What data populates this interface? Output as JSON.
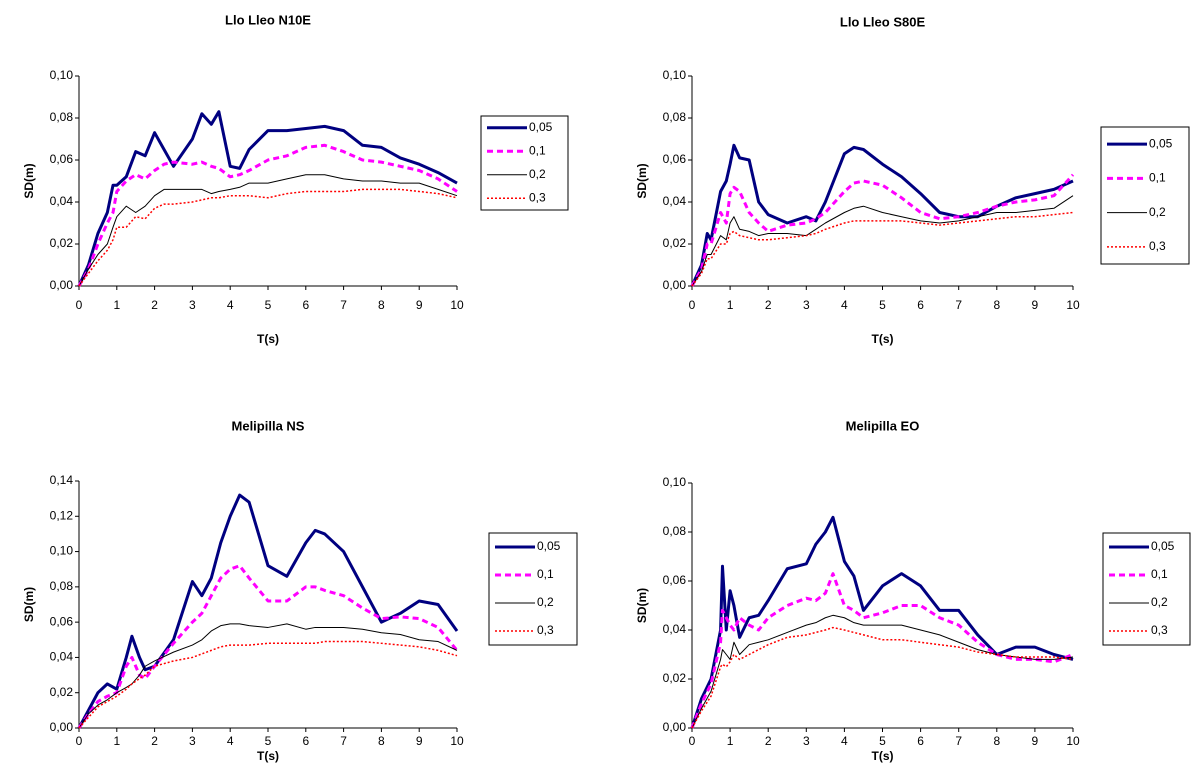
{
  "chart_data": [
    {
      "type": "line",
      "title": "Llo Lleo N10E",
      "x_label": "T(s)",
      "y_label": "SD(m)",
      "legend": "right",
      "grid": false,
      "xlim": [
        0,
        10
      ],
      "xticks": [
        0,
        1,
        2,
        3,
        4,
        5,
        6,
        7,
        8,
        9,
        10
      ],
      "ylim": [
        0,
        0.1
      ],
      "yticks": [
        {
          "value": 0,
          "label": "0,00"
        },
        {
          "value": 0.02,
          "label": "0,02"
        },
        {
          "value": 0.04,
          "label": "0,04"
        },
        {
          "value": 0.06,
          "label": "0,06"
        },
        {
          "value": 0.08,
          "label": "0,08"
        },
        {
          "value": 0.1,
          "label": "0,10"
        }
      ],
      "x": [
        0,
        0.25,
        0.5,
        0.75,
        0.9,
        1,
        1.25,
        1.5,
        1.75,
        2,
        2.25,
        2.5,
        3,
        3.25,
        3.5,
        3.7,
        4,
        4.25,
        4.5,
        5,
        5.5,
        6,
        6.5,
        7,
        7.5,
        8,
        8.5,
        9,
        9.5,
        10
      ],
      "series": [
        {
          "name": "0,05",
          "color": "#000080",
          "line_style": "solid-thick",
          "values": [
            0,
            0.01,
            0.025,
            0.035,
            0.048,
            0.048,
            0.052,
            0.064,
            0.062,
            0.073,
            0.065,
            0.057,
            0.07,
            0.082,
            0.077,
            0.083,
            0.057,
            0.056,
            0.065,
            0.074,
            0.074,
            0.075,
            0.076,
            0.074,
            0.067,
            0.066,
            0.061,
            0.058,
            0.054,
            0.049
          ]
        },
        {
          "name": "0,1",
          "color": "#ff00ff",
          "line_style": "dashed-thick",
          "values": [
            0,
            0.008,
            0.02,
            0.03,
            0.035,
            0.045,
            0.05,
            0.053,
            0.051,
            0.055,
            0.058,
            0.059,
            0.058,
            0.059,
            0.057,
            0.056,
            0.052,
            0.053,
            0.055,
            0.06,
            0.062,
            0.066,
            0.067,
            0.064,
            0.06,
            0.059,
            0.057,
            0.055,
            0.051,
            0.045
          ]
        },
        {
          "name": "0,2",
          "color": "#000000",
          "line_style": "solid-thin",
          "values": [
            0,
            0.008,
            0.015,
            0.02,
            0.028,
            0.033,
            0.038,
            0.035,
            0.038,
            0.043,
            0.046,
            0.046,
            0.046,
            0.046,
            0.044,
            0.045,
            0.046,
            0.047,
            0.049,
            0.049,
            0.051,
            0.053,
            0.053,
            0.051,
            0.05,
            0.05,
            0.049,
            0.049,
            0.046,
            0.043
          ]
        },
        {
          "name": "0,3",
          "color": "#ff0000",
          "line_style": "dotted",
          "values": [
            0,
            0.006,
            0.012,
            0.017,
            0.022,
            0.028,
            0.028,
            0.033,
            0.032,
            0.037,
            0.039,
            0.039,
            0.04,
            0.041,
            0.042,
            0.042,
            0.043,
            0.043,
            0.043,
            0.042,
            0.044,
            0.045,
            0.045,
            0.045,
            0.046,
            0.046,
            0.046,
            0.045,
            0.044,
            0.042
          ]
        }
      ]
    },
    {
      "type": "line",
      "title": "Llo Lleo S80E",
      "x_label": "T(s)",
      "y_label": "SD(m)",
      "legend": "right",
      "grid": false,
      "xlim": [
        0,
        10
      ],
      "xticks": [
        0,
        1,
        2,
        3,
        4,
        5,
        6,
        7,
        8,
        9,
        10
      ],
      "ylim": [
        0,
        0.1
      ],
      "yticks": [
        {
          "value": 0,
          "label": "0,00"
        },
        {
          "value": 0.02,
          "label": "0,02"
        },
        {
          "value": 0.04,
          "label": "0,04"
        },
        {
          "value": 0.06,
          "label": "0,06"
        },
        {
          "value": 0.08,
          "label": "0,08"
        },
        {
          "value": 0.1,
          "label": "0,10"
        }
      ],
      "x": [
        0,
        0.25,
        0.4,
        0.5,
        0.75,
        0.9,
        1,
        1.1,
        1.25,
        1.5,
        1.75,
        2,
        2.5,
        3,
        3.25,
        3.5,
        4,
        4.25,
        4.5,
        5,
        5.5,
        6,
        6.5,
        7,
        7.5,
        8,
        8.5,
        9,
        9.5,
        10
      ],
      "series": [
        {
          "name": "0,05",
          "color": "#000080",
          "line_style": "solid-thick",
          "values": [
            0,
            0.01,
            0.025,
            0.022,
            0.045,
            0.05,
            0.058,
            0.067,
            0.061,
            0.06,
            0.04,
            0.034,
            0.03,
            0.033,
            0.031,
            0.04,
            0.063,
            0.066,
            0.065,
            0.058,
            0.052,
            0.044,
            0.035,
            0.033,
            0.033,
            0.038,
            0.042,
            0.044,
            0.046,
            0.05
          ]
        },
        {
          "name": "0,1",
          "color": "#ff00ff",
          "line_style": "dashed-thick",
          "values": [
            0,
            0.008,
            0.02,
            0.02,
            0.035,
            0.03,
            0.044,
            0.047,
            0.045,
            0.035,
            0.03,
            0.026,
            0.029,
            0.03,
            0.032,
            0.035,
            0.045,
            0.049,
            0.05,
            0.048,
            0.042,
            0.035,
            0.032,
            0.033,
            0.035,
            0.038,
            0.04,
            0.041,
            0.043,
            0.053
          ]
        },
        {
          "name": "0,2",
          "color": "#000000",
          "line_style": "solid-thin",
          "values": [
            0,
            0.007,
            0.015,
            0.015,
            0.024,
            0.022,
            0.03,
            0.033,
            0.027,
            0.026,
            0.024,
            0.025,
            0.025,
            0.024,
            0.027,
            0.03,
            0.035,
            0.037,
            0.038,
            0.035,
            0.033,
            0.031,
            0.03,
            0.031,
            0.033,
            0.035,
            0.035,
            0.036,
            0.037,
            0.043
          ]
        },
        {
          "name": "0,3",
          "color": "#ff0000",
          "line_style": "dotted",
          "values": [
            0,
            0.006,
            0.013,
            0.013,
            0.02,
            0.02,
            0.025,
            0.026,
            0.024,
            0.023,
            0.022,
            0.022,
            0.023,
            0.024,
            0.025,
            0.027,
            0.03,
            0.031,
            0.031,
            0.031,
            0.031,
            0.03,
            0.029,
            0.03,
            0.031,
            0.032,
            0.033,
            0.033,
            0.034,
            0.035
          ]
        }
      ]
    },
    {
      "type": "line",
      "title": "Melipilla NS",
      "x_label": "T(s)",
      "y_label": "SD(m)",
      "legend": "right",
      "grid": false,
      "xlim": [
        0,
        10
      ],
      "xticks": [
        0,
        1,
        2,
        3,
        4,
        5,
        6,
        7,
        8,
        9,
        10
      ],
      "ylim": [
        0,
        0.14
      ],
      "yticks": [
        {
          "value": 0,
          "label": "0,00"
        },
        {
          "value": 0.02,
          "label": "0,02"
        },
        {
          "value": 0.04,
          "label": "0,04"
        },
        {
          "value": 0.06,
          "label": "0,06"
        },
        {
          "value": 0.08,
          "label": "0,08"
        },
        {
          "value": 0.1,
          "label": "0,10"
        },
        {
          "value": 0.12,
          "label": "0,12"
        },
        {
          "value": 0.14,
          "label": "0,14"
        }
      ],
      "x": [
        0,
        0.25,
        0.5,
        0.75,
        1,
        1.25,
        1.4,
        1.6,
        1.75,
        2,
        2.5,
        3,
        3.25,
        3.5,
        3.75,
        4,
        4.25,
        4.5,
        5,
        5.5,
        6,
        6.25,
        6.5,
        7,
        7.5,
        8,
        8.5,
        9,
        9.5,
        10
      ],
      "series": [
        {
          "name": "0,05",
          "color": "#000080",
          "line_style": "solid-thick",
          "values": [
            0,
            0.01,
            0.02,
            0.025,
            0.022,
            0.04,
            0.052,
            0.04,
            0.033,
            0.035,
            0.05,
            0.083,
            0.075,
            0.085,
            0.105,
            0.12,
            0.132,
            0.128,
            0.092,
            0.086,
            0.105,
            0.112,
            0.11,
            0.1,
            0.08,
            0.06,
            0.065,
            0.072,
            0.07,
            0.055
          ]
        },
        {
          "name": "0,1",
          "color": "#ff00ff",
          "line_style": "dashed-thick",
          "values": [
            0,
            0.008,
            0.015,
            0.018,
            0.02,
            0.035,
            0.04,
            0.03,
            0.028,
            0.035,
            0.048,
            0.06,
            0.065,
            0.075,
            0.085,
            0.09,
            0.092,
            0.085,
            0.072,
            0.072,
            0.08,
            0.08,
            0.078,
            0.075,
            0.068,
            0.062,
            0.063,
            0.062,
            0.057,
            0.044
          ]
        },
        {
          "name": "0,2",
          "color": "#000000",
          "line_style": "solid-thin",
          "values": [
            0,
            0.008,
            0.013,
            0.016,
            0.02,
            0.023,
            0.025,
            0.03,
            0.035,
            0.038,
            0.043,
            0.047,
            0.05,
            0.055,
            0.058,
            0.059,
            0.059,
            0.058,
            0.057,
            0.059,
            0.056,
            0.057,
            0.057,
            0.057,
            0.056,
            0.054,
            0.053,
            0.05,
            0.049,
            0.044
          ]
        },
        {
          "name": "0,3",
          "color": "#ff0000",
          "line_style": "dotted",
          "values": [
            0,
            0.006,
            0.012,
            0.015,
            0.018,
            0.022,
            0.025,
            0.028,
            0.03,
            0.035,
            0.038,
            0.04,
            0.042,
            0.044,
            0.046,
            0.047,
            0.047,
            0.047,
            0.048,
            0.048,
            0.048,
            0.048,
            0.049,
            0.049,
            0.049,
            0.048,
            0.047,
            0.046,
            0.044,
            0.041
          ]
        }
      ]
    },
    {
      "type": "line",
      "title": "Melipilla EO",
      "x_label": "T(s)",
      "y_label": "SD(m)",
      "legend": "right",
      "grid": false,
      "xlim": [
        0,
        10
      ],
      "xticks": [
        0,
        1,
        2,
        3,
        4,
        5,
        6,
        7,
        8,
        9,
        10
      ],
      "ylim": [
        0,
        0.1
      ],
      "yticks": [
        {
          "value": 0,
          "label": "0,00"
        },
        {
          "value": 0.02,
          "label": "0,02"
        },
        {
          "value": 0.04,
          "label": "0,04"
        },
        {
          "value": 0.06,
          "label": "0,06"
        },
        {
          "value": 0.08,
          "label": "0,08"
        },
        {
          "value": 0.1,
          "label": "0,10"
        }
      ],
      "x": [
        0,
        0.25,
        0.5,
        0.75,
        0.8,
        0.9,
        1,
        1.1,
        1.25,
        1.5,
        1.75,
        2,
        2.5,
        3,
        3.25,
        3.5,
        3.7,
        4,
        4.25,
        4.5,
        5,
        5.5,
        6,
        6.5,
        7,
        7.5,
        8,
        8.5,
        9,
        9.5,
        10
      ],
      "series": [
        {
          "name": "0,05",
          "color": "#000080",
          "line_style": "solid-thick",
          "values": [
            0,
            0.012,
            0.02,
            0.04,
            0.066,
            0.04,
            0.056,
            0.05,
            0.037,
            0.045,
            0.046,
            0.052,
            0.065,
            0.067,
            0.075,
            0.08,
            0.086,
            0.068,
            0.062,
            0.048,
            0.058,
            0.063,
            0.058,
            0.048,
            0.048,
            0.038,
            0.03,
            0.033,
            0.033,
            0.03,
            0.028
          ]
        },
        {
          "name": "0,1",
          "color": "#ff00ff",
          "line_style": "dashed-thick",
          "values": [
            0,
            0.01,
            0.018,
            0.035,
            0.048,
            0.045,
            0.042,
            0.04,
            0.045,
            0.042,
            0.04,
            0.045,
            0.05,
            0.053,
            0.052,
            0.055,
            0.063,
            0.05,
            0.048,
            0.045,
            0.047,
            0.05,
            0.05,
            0.045,
            0.042,
            0.035,
            0.03,
            0.028,
            0.028,
            0.027,
            0.03
          ]
        },
        {
          "name": "0,2",
          "color": "#000000",
          "line_style": "solid-thin",
          "values": [
            0,
            0.008,
            0.015,
            0.028,
            0.032,
            0.03,
            0.028,
            0.035,
            0.03,
            0.034,
            0.035,
            0.036,
            0.039,
            0.042,
            0.043,
            0.045,
            0.046,
            0.045,
            0.043,
            0.042,
            0.042,
            0.042,
            0.04,
            0.038,
            0.035,
            0.032,
            0.03,
            0.029,
            0.028,
            0.028,
            0.029
          ]
        },
        {
          "name": "0,3",
          "color": "#ff0000",
          "line_style": "dotted",
          "values": [
            0,
            0.007,
            0.013,
            0.025,
            0.026,
            0.025,
            0.027,
            0.03,
            0.028,
            0.03,
            0.032,
            0.034,
            0.037,
            0.038,
            0.039,
            0.04,
            0.041,
            0.04,
            0.039,
            0.038,
            0.036,
            0.036,
            0.035,
            0.034,
            0.033,
            0.031,
            0.03,
            0.029,
            0.029,
            0.029,
            0.028
          ]
        }
      ]
    }
  ]
}
